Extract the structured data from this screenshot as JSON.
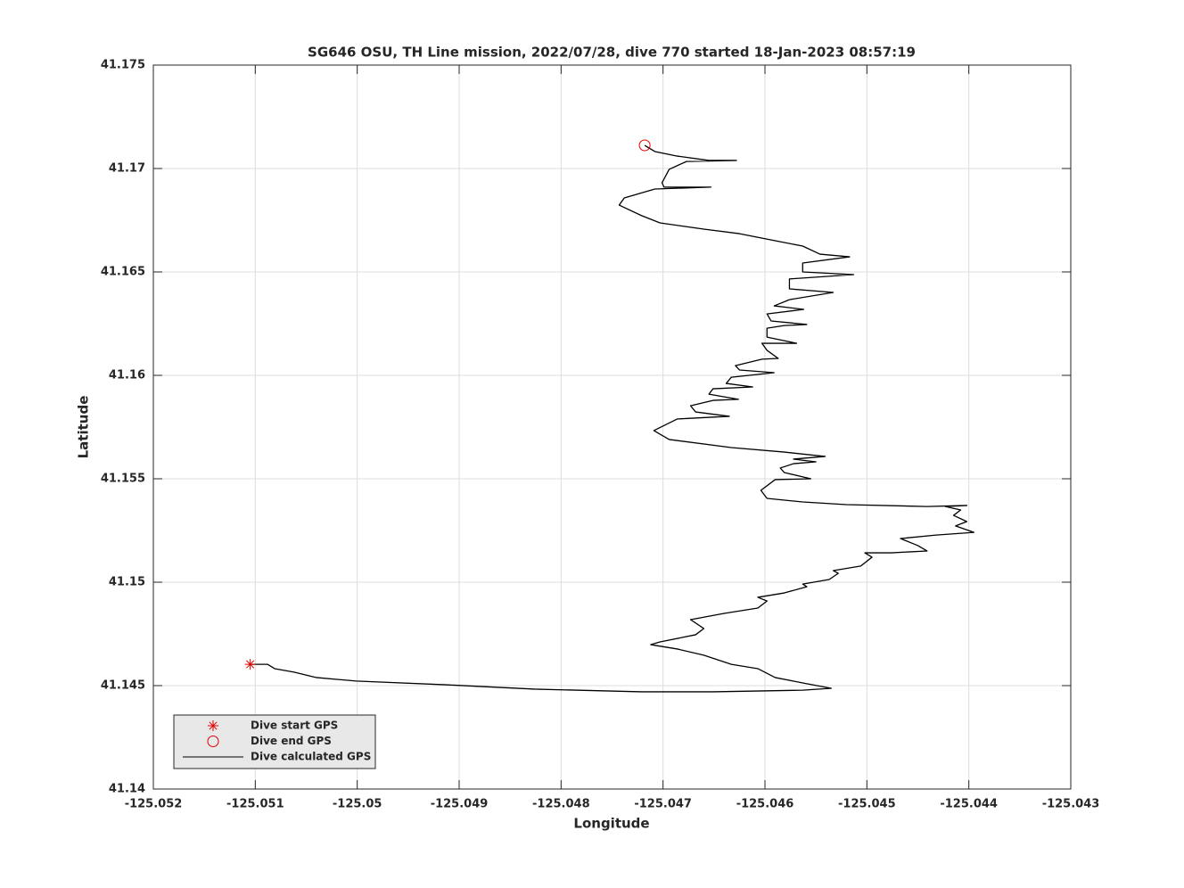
{
  "chart_data": {
    "type": "line",
    "title": "SG646 OSU, TH Line mission, 2022/07/28, dive 770 started 18-Jan-2023 08:57:19",
    "xlabel": "Longitude",
    "ylabel": "Latitude",
    "xlim": [
      -125.052,
      -125.043
    ],
    "ylim": [
      41.14,
      41.175
    ],
    "xticks": [
      -125.052,
      -125.051,
      -125.05,
      -125.049,
      -125.048,
      -125.047,
      -125.046,
      -125.045,
      -125.044,
      -125.043
    ],
    "yticks": [
      41.14,
      41.145,
      41.15,
      41.155,
      41.16,
      41.165,
      41.17,
      41.175
    ],
    "grid": true,
    "legend": "lower left",
    "series": [
      {
        "name": "Dive start GPS",
        "color": "#e00000",
        "marker": "star",
        "x": [
          -125.05105
        ],
        "y": [
          41.14603
        ]
      },
      {
        "name": "Dive end GPS",
        "color": "#e00000",
        "marker": "circle",
        "x": [
          -125.04718
        ],
        "y": [
          41.17112
        ]
      },
      {
        "name": "Dive calculated GPS",
        "color": "#000000",
        "marker": "none",
        "x": [
          -125.05105,
          -125.05088,
          -125.05081,
          -125.05062,
          -125.0504,
          -125.05001,
          -125.04913,
          -125.04826,
          -125.04721,
          -125.04651,
          -125.04563,
          -125.04535,
          -125.04563,
          -125.0459,
          -125.04607,
          -125.04633,
          -125.0466,
          -125.04686,
          -125.04712,
          -125.04703,
          -125.04668,
          -125.0466,
          -125.04673,
          -125.0464,
          -125.04607,
          -125.04598,
          -125.04607,
          -125.04581,
          -125.04559,
          -125.04563,
          -125.04537,
          -125.04528,
          -125.04533,
          -125.04506,
          -125.04495,
          -125.04502,
          -125.04476,
          -125.04441,
          -125.0445,
          -125.04467,
          -125.04432,
          -125.04395,
          -125.04413,
          -125.04402,
          -125.04415,
          -125.04408,
          -125.04423,
          -125.04402,
          -125.04441,
          -125.0452,
          -125.04563,
          -125.04598,
          -125.04604,
          -125.0459,
          -125.04555,
          -125.04581,
          -125.04585,
          -125.04572,
          -125.0455,
          -125.04572,
          -125.04541,
          -125.04581,
          -125.04633,
          -125.04694,
          -125.04709,
          -125.04686,
          -125.04635,
          -125.04668,
          -125.04673,
          -125.04651,
          -125.04626,
          -125.04655,
          -125.04651,
          -125.04612,
          -125.04638,
          -125.04633,
          -125.04591,
          -125.04625,
          -125.04629,
          -125.04603,
          -125.04587,
          -125.04598,
          -125.04603,
          -125.04569,
          -125.04598,
          -125.04598,
          -125.04581,
          -125.04559,
          -125.04594,
          -125.04598,
          -125.04562,
          -125.04591,
          -125.04576,
          -125.04533,
          -125.04576,
          -125.04576,
          -125.04513,
          -125.04563,
          -125.04563,
          -125.04517,
          -125.04546,
          -125.04563,
          -125.0459,
          -125.04625,
          -125.0466,
          -125.04703,
          -125.04721,
          -125.04743,
          -125.04738,
          -125.04708,
          -125.04653,
          -125.04699,
          -125.04701,
          -125.04694,
          -125.04677,
          -125.04628,
          -125.04655,
          -125.04686,
          -125.04708,
          -125.04718
        ],
        "y": [
          41.14603,
          41.14603,
          41.14582,
          41.14565,
          41.14539,
          41.14522,
          41.14504,
          41.14483,
          41.1447,
          41.1447,
          41.14478,
          41.14487,
          41.14513,
          41.14539,
          41.14582,
          41.14603,
          41.14647,
          41.14677,
          41.14698,
          41.14711,
          41.14746,
          41.14776,
          41.14819,
          41.14849,
          41.14875,
          41.14909,
          41.14927,
          41.14948,
          41.14978,
          41.14991,
          41.15013,
          41.15043,
          41.15056,
          41.15078,
          41.15121,
          41.15142,
          41.15142,
          41.15151,
          41.15177,
          41.15211,
          41.15228,
          41.15241,
          41.15272,
          41.15293,
          41.15323,
          41.15349,
          41.15366,
          41.15371,
          41.15366,
          41.15375,
          41.15388,
          41.15405,
          41.15444,
          41.15496,
          41.155,
          41.1553,
          41.15552,
          41.15573,
          41.15582,
          41.15595,
          41.15608,
          41.15629,
          41.15651,
          41.1569,
          41.15733,
          41.15789,
          41.15802,
          41.15823,
          41.15853,
          41.15879,
          41.15884,
          41.15909,
          41.15935,
          41.15944,
          41.15961,
          41.15991,
          41.16013,
          41.16026,
          41.16047,
          41.16078,
          41.16082,
          41.16121,
          41.16155,
          41.16155,
          41.16185,
          41.16228,
          41.16241,
          41.16246,
          41.16263,
          41.16297,
          41.16319,
          41.16336,
          41.16366,
          41.16401,
          41.16418,
          41.16466,
          41.16487,
          41.165,
          41.16543,
          41.16573,
          41.16586,
          41.16625,
          41.16651,
          41.16685,
          41.16707,
          41.16737,
          41.16772,
          41.16823,
          41.16858,
          41.16901,
          41.1691,
          41.1691,
          41.16931,
          41.16996,
          41.17034,
          41.17039,
          41.17039,
          41.1706,
          41.17082,
          41.17112
        ]
      }
    ]
  }
}
